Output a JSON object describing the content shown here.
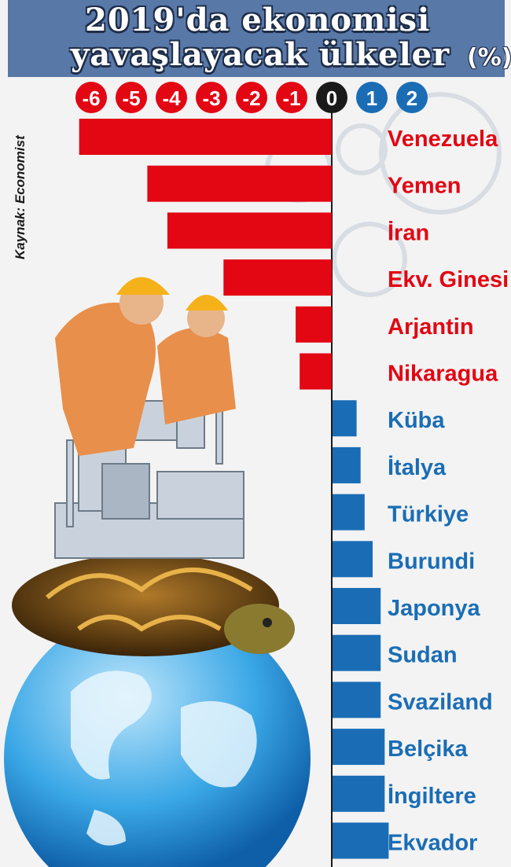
{
  "header": {
    "title_line1": "2019'da ekonomisi",
    "title_line2": "yavaşlayacak ülkeler",
    "unit": "(%)"
  },
  "source": "Kaynak: Economist",
  "colors": {
    "negative": "#e30613",
    "positive": "#1a6db5",
    "zero": "#1a1a1a",
    "header": "#5878a8"
  },
  "chart_data": {
    "type": "bar",
    "orientation": "horizontal",
    "title": "2019'da ekonomisi yavaşlayacak ülkeler (%)",
    "xlim": [
      -6.5,
      2.5
    ],
    "ticks": [
      "-6",
      "-5",
      "-4",
      "-3",
      "-2",
      "-1",
      "0",
      "1",
      "2"
    ],
    "tick_values": [
      -6,
      -5,
      -4,
      -3,
      -2,
      -1,
      0,
      1,
      2
    ],
    "categories": [
      "Venezuela",
      "Yemen",
      "İran",
      "Ekv. Ginesi",
      "Arjantin",
      "Nikaragua",
      "Küba",
      "İtalya",
      "Türkiye",
      "Burundi",
      "Japonya",
      "Sudan",
      "Svaziland",
      "Belçika",
      "İngiltere",
      "Ekvador"
    ],
    "values": [
      -6.3,
      -4.6,
      -4.1,
      -2.7,
      -0.9,
      -0.8,
      0.6,
      0.7,
      0.8,
      1.0,
      1.2,
      1.2,
      1.2,
      1.3,
      1.3,
      1.4
    ]
  }
}
